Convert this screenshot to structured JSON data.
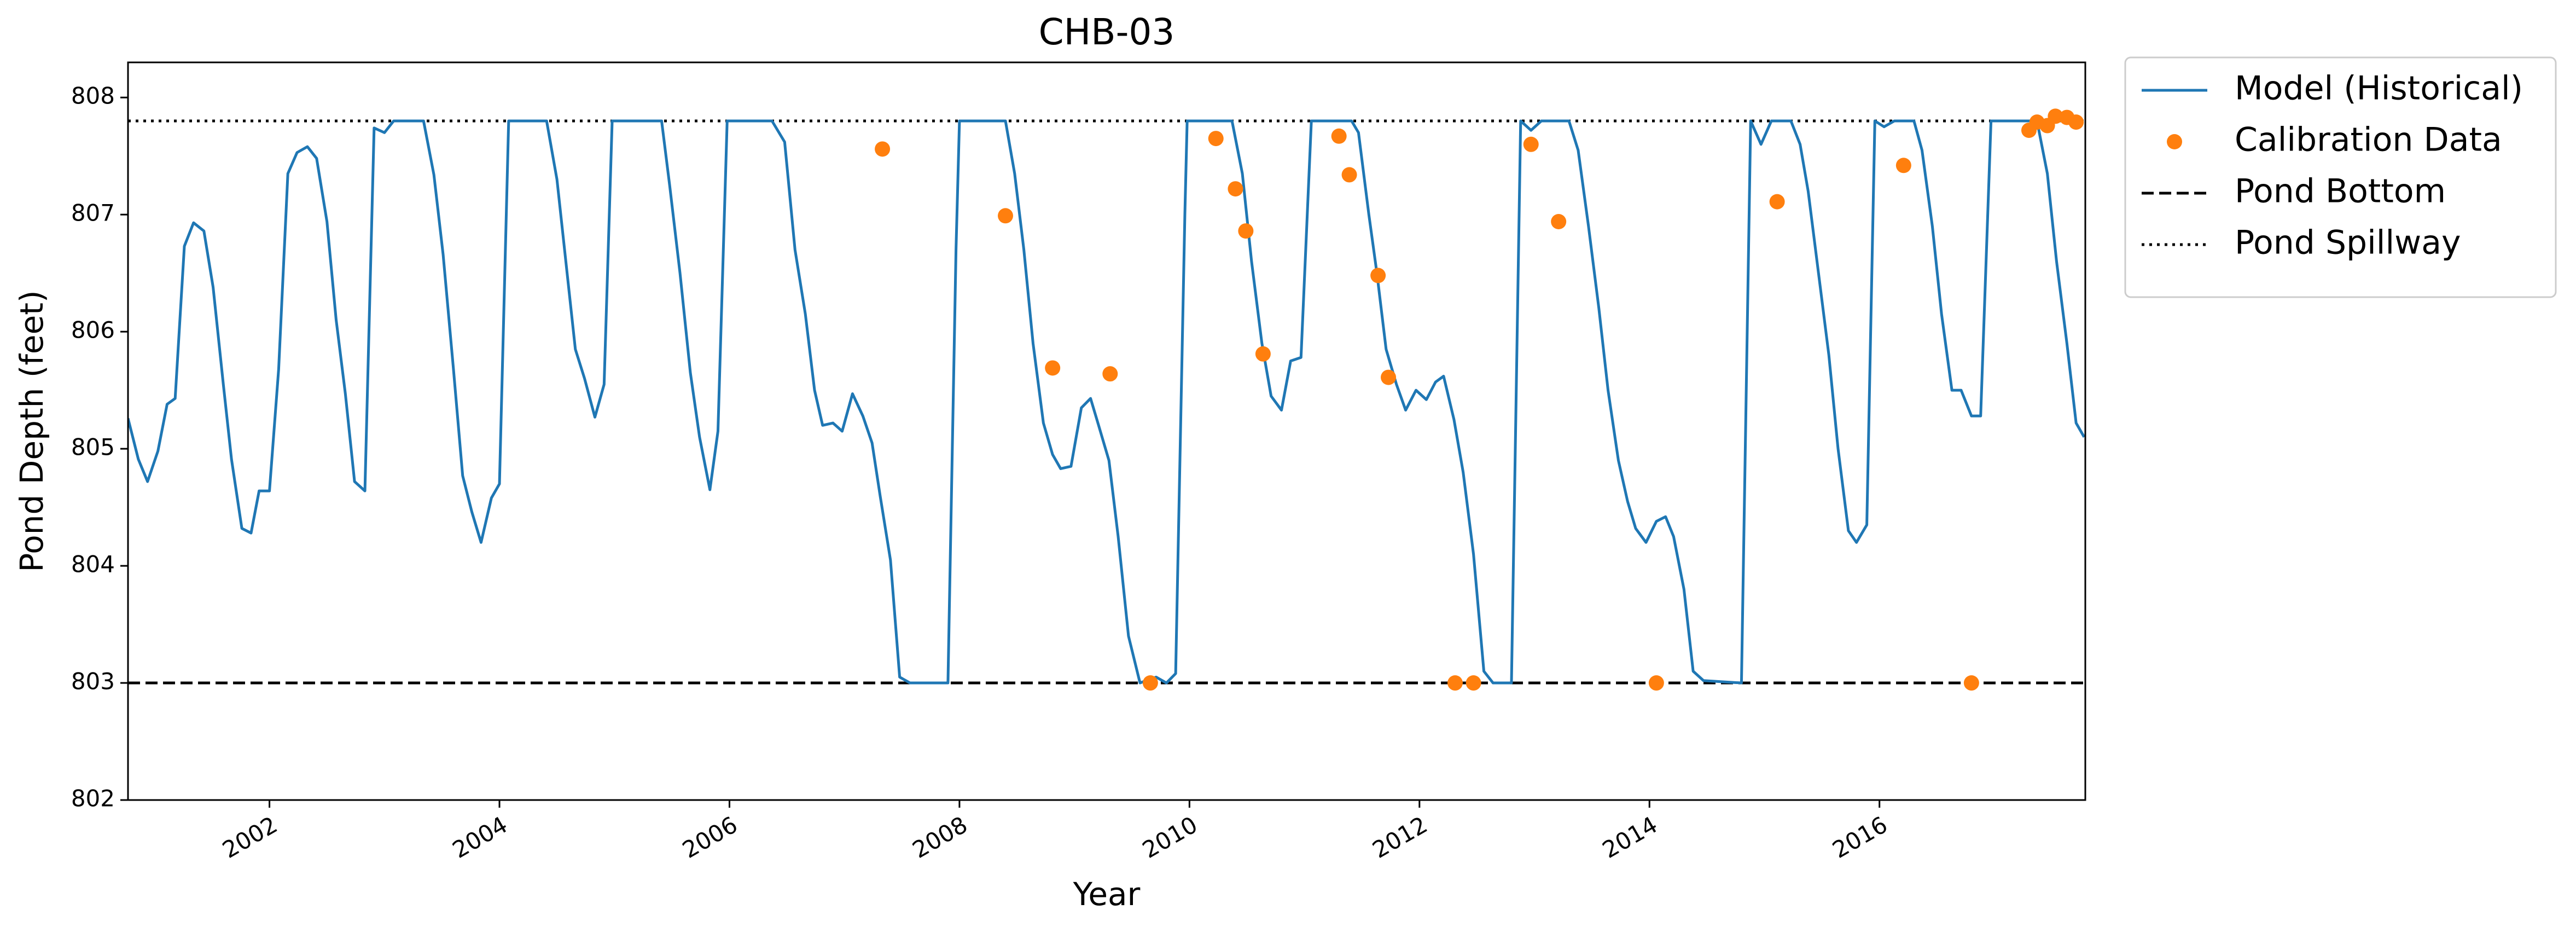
{
  "chart_data": {
    "type": "line",
    "title": "CHB-03",
    "xlabel": "Year",
    "ylabel": "Pond Depth (feet)",
    "xlim": [
      2000.77,
      2017.79
    ],
    "xticks": [
      2002,
      2004,
      2006,
      2008,
      2010,
      2012,
      2014,
      2016
    ],
    "ylim": [
      802,
      808.3
    ],
    "yticks": [
      802,
      803,
      804,
      805,
      806,
      807,
      808
    ],
    "grid": false,
    "legend": "outside-right",
    "series": [
      {
        "name": "Model (Historical)",
        "kind": "line",
        "color": "#1f77b4",
        "x": [
          2000.77,
          2000.86,
          2000.94,
          2001.03,
          2001.11,
          2001.18,
          2001.26,
          2001.34,
          2001.43,
          2001.51,
          2001.6,
          2001.67,
          2001.76,
          2001.84,
          2001.91,
          2002.0,
          2002.08,
          2002.16,
          2002.24,
          2002.33,
          2002.41,
          2002.5,
          2002.58,
          2002.66,
          2002.74,
          2002.83,
          2002.91,
          2003.0,
          2003.08,
          2003.34,
          2003.43,
          2003.51,
          2003.6,
          2003.68,
          2003.76,
          2003.84,
          2003.93,
          2004.0,
          2004.08,
          2004.41,
          2004.5,
          2004.66,
          2004.74,
          2004.83,
          2004.91,
          2004.98,
          2005.41,
          2005.48,
          2005.57,
          2005.66,
          2005.74,
          2005.83,
          2005.9,
          2005.98,
          2006.37,
          2006.48,
          2006.57,
          2006.66,
          2006.74,
          2006.81,
          2006.9,
          2006.98,
          2007.07,
          2007.16,
          2007.24,
          2007.31,
          2007.4,
          2007.48,
          2007.57,
          2007.9,
          2007.97,
          2008.0,
          2008.4,
          2008.48,
          2008.56,
          2008.64,
          2008.73,
          2008.81,
          2008.88,
          2008.97,
          2009.06,
          2009.14,
          2009.21,
          2009.3,
          2009.38,
          2009.47,
          2009.57,
          2009.71,
          2009.8,
          2009.88,
          2009.96,
          2009.98,
          2010.37,
          2010.46,
          2010.54,
          2010.63,
          2010.71,
          2010.8,
          2010.88,
          2010.97,
          2011.06,
          2011.41,
          2011.47,
          2011.56,
          2011.63,
          2011.71,
          2011.8,
          2011.88,
          2011.97,
          2012.06,
          2012.14,
          2012.21,
          2012.3,
          2012.38,
          2012.47,
          2012.56,
          2012.64,
          2012.8,
          2012.88,
          2012.97,
          2013.06,
          2013.3,
          2013.38,
          2013.47,
          2013.56,
          2013.64,
          2013.73,
          2013.81,
          2013.88,
          2013.97,
          2014.06,
          2014.14,
          2014.21,
          2014.3,
          2014.38,
          2014.47,
          2014.8,
          2014.88,
          2014.97,
          2015.06,
          2015.23,
          2015.31,
          2015.38,
          2015.47,
          2015.56,
          2015.64,
          2015.73,
          2015.8,
          2015.89,
          2015.96,
          2016.04,
          2016.13,
          2016.3,
          2016.37,
          2016.46,
          2016.54,
          2016.63,
          2016.71,
          2016.8,
          2016.88,
          2016.97,
          2017.37,
          2017.46,
          2017.54,
          2017.63,
          2017.71,
          2017.78
        ],
        "values": [
          805.26,
          804.91,
          804.72,
          804.98,
          805.38,
          805.43,
          806.73,
          806.93,
          806.86,
          806.38,
          805.54,
          804.91,
          804.32,
          804.28,
          804.64,
          804.64,
          805.68,
          807.35,
          807.53,
          807.58,
          807.48,
          806.94,
          806.1,
          805.47,
          804.72,
          804.64,
          807.74,
          807.7,
          807.8,
          807.8,
          807.34,
          806.66,
          805.68,
          804.77,
          804.46,
          804.2,
          804.58,
          804.7,
          807.8,
          807.8,
          807.3,
          805.85,
          805.6,
          805.27,
          805.55,
          807.8,
          807.8,
          807.25,
          806.5,
          805.65,
          805.1,
          804.65,
          805.15,
          807.8,
          807.8,
          807.62,
          806.7,
          806.15,
          805.5,
          805.2,
          805.22,
          805.15,
          805.47,
          805.28,
          805.05,
          804.6,
          804.05,
          803.05,
          803.0,
          803.0,
          806.7,
          807.8,
          807.8,
          807.35,
          806.7,
          805.9,
          805.22,
          804.95,
          804.83,
          804.85,
          805.35,
          805.43,
          805.2,
          804.9,
          804.25,
          803.4,
          803.0,
          803.05,
          803.0,
          803.08,
          807.0,
          807.8,
          807.8,
          807.35,
          806.6,
          805.9,
          805.45,
          805.33,
          805.75,
          805.78,
          807.8,
          807.8,
          807.7,
          807.0,
          806.5,
          805.85,
          805.55,
          805.33,
          805.5,
          805.42,
          805.57,
          805.62,
          805.25,
          804.8,
          804.1,
          803.1,
          803.0,
          803.0,
          807.8,
          807.72,
          807.8,
          807.8,
          807.55,
          806.9,
          806.2,
          805.5,
          804.9,
          804.55,
          804.32,
          804.2,
          804.38,
          804.42,
          804.25,
          803.8,
          803.1,
          803.02,
          803.0,
          807.8,
          807.6,
          807.8,
          807.8,
          807.6,
          807.2,
          806.5,
          805.8,
          805.0,
          804.3,
          804.2,
          804.35,
          807.8,
          807.75,
          807.8,
          807.8,
          807.55,
          806.9,
          806.15,
          805.5,
          805.5,
          805.28,
          805.28,
          807.8,
          807.8,
          807.35,
          806.6,
          805.9,
          805.22,
          805.1
        ]
      },
      {
        "name": "Calibration Data",
        "kind": "scatter",
        "color": "#ff7f0e",
        "x": [
          2007.33,
          2008.4,
          2008.81,
          2009.31,
          2009.66,
          2010.23,
          2010.4,
          2010.49,
          2010.64,
          2011.3,
          2011.39,
          2011.64,
          2011.73,
          2012.31,
          2012.47,
          2012.97,
          2013.21,
          2014.06,
          2015.11,
          2016.21,
          2016.8,
          2017.3,
          2017.37,
          2017.46,
          2017.53,
          2017.63,
          2017.71
        ],
        "values": [
          807.56,
          806.99,
          805.69,
          805.64,
          803.0,
          807.65,
          807.22,
          806.86,
          805.81,
          807.67,
          807.34,
          806.48,
          805.61,
          803.0,
          803.0,
          807.6,
          806.94,
          803.0,
          807.11,
          807.42,
          803.0,
          807.72,
          807.79,
          807.76,
          807.84,
          807.83,
          807.79
        ]
      },
      {
        "name": "Pond Bottom",
        "kind": "hline",
        "style": "dashed",
        "color": "#000000",
        "values": [
          803
        ]
      },
      {
        "name": "Pond Spillway",
        "kind": "hline",
        "style": "dotted",
        "color": "#000000",
        "values": [
          807.8
        ]
      }
    ]
  }
}
